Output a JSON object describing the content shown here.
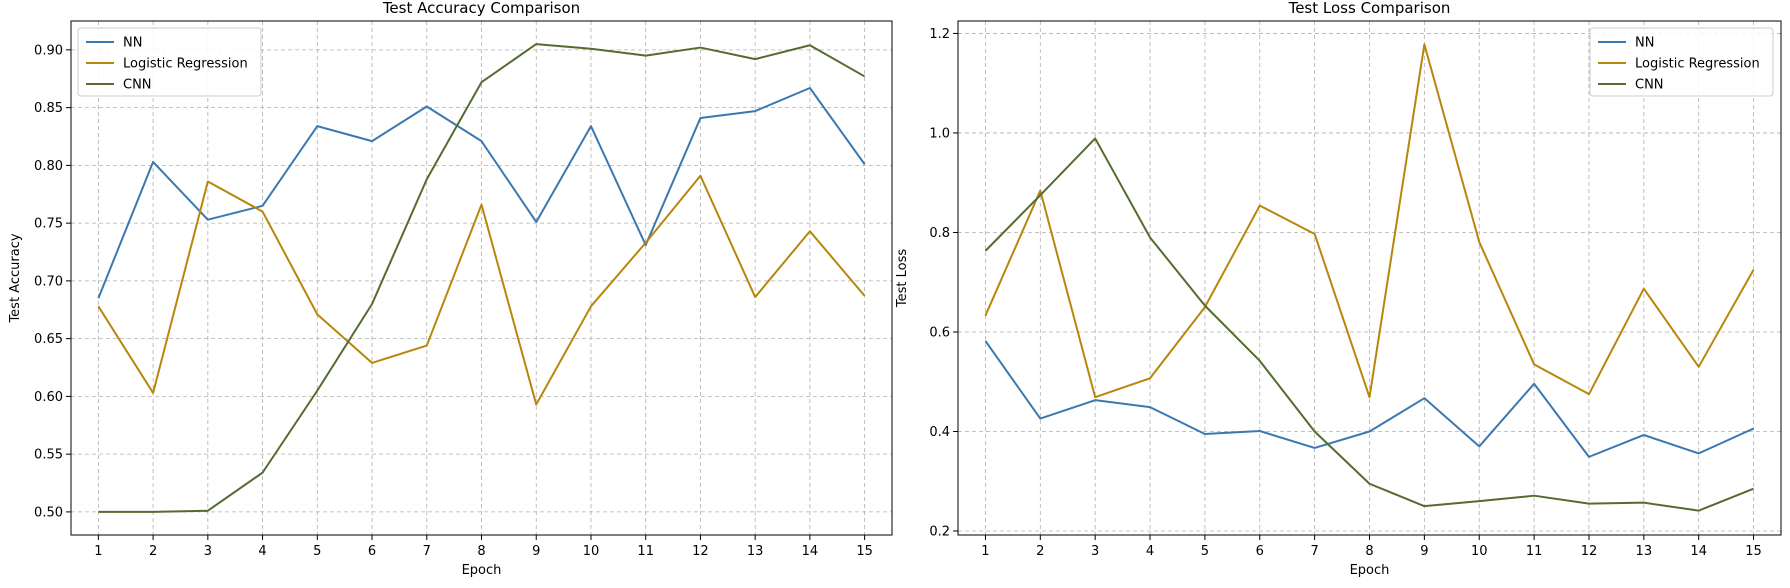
{
  "chart_data": [
    {
      "type": "line",
      "title": "Test Accuracy Comparison",
      "xlabel": "Epoch",
      "ylabel": "Test Accuracy",
      "x": [
        1,
        2,
        3,
        4,
        5,
        6,
        7,
        8,
        9,
        10,
        11,
        12,
        13,
        14,
        15
      ],
      "xlim": [
        0.5,
        15.5
      ],
      "ylim": [
        0.48,
        0.925
      ],
      "yticks": [
        0.5,
        0.55,
        0.6,
        0.65,
        0.7,
        0.75,
        0.8,
        0.85,
        0.9
      ],
      "ytick_labels": [
        "0.50",
        "0.55",
        "0.60",
        "0.65",
        "0.70",
        "0.75",
        "0.80",
        "0.85",
        "0.90"
      ],
      "grid": true,
      "legend_position": "top-left",
      "series": [
        {
          "name": "NN",
          "color": "#3b78b0",
          "values": [
            0.685,
            0.803,
            0.753,
            0.765,
            0.834,
            0.821,
            0.851,
            0.821,
            0.751,
            0.834,
            0.731,
            0.841,
            0.847,
            0.867,
            0.801
          ]
        },
        {
          "name": "Logistic Regression",
          "color": "#b8860b",
          "values": [
            0.678,
            0.603,
            0.786,
            0.76,
            0.671,
            0.629,
            0.644,
            0.766,
            0.593,
            0.678,
            0.733,
            0.791,
            0.686,
            0.743,
            0.687
          ]
        },
        {
          "name": "CNN",
          "color": "#556b2f",
          "values": [
            0.5,
            0.5,
            0.501,
            0.534,
            0.605,
            0.68,
            0.788,
            0.872,
            0.905,
            0.901,
            0.895,
            0.902,
            0.892,
            0.904,
            0.877
          ]
        }
      ]
    },
    {
      "type": "line",
      "title": "Test Loss Comparison",
      "xlabel": "Epoch",
      "ylabel": "Test Loss",
      "x": [
        1,
        2,
        3,
        4,
        5,
        6,
        7,
        8,
        9,
        10,
        11,
        12,
        13,
        14,
        15
      ],
      "xlim": [
        0.5,
        15.5
      ],
      "ylim": [
        0.192,
        1.225
      ],
      "yticks": [
        0.2,
        0.4,
        0.6,
        0.8,
        1.0,
        1.2
      ],
      "ytick_labels": [
        "0.2",
        "0.4",
        "0.6",
        "0.8",
        "1.0",
        "1.2"
      ],
      "grid": true,
      "legend_position": "top-right",
      "series": [
        {
          "name": "NN",
          "color": "#3b78b0",
          "values": [
            0.582,
            0.426,
            0.463,
            0.449,
            0.395,
            0.401,
            0.367,
            0.4,
            0.467,
            0.37,
            0.496,
            0.349,
            0.393,
            0.356,
            0.406
          ]
        },
        {
          "name": "Logistic Regression",
          "color": "#b8860b",
          "values": [
            0.633,
            0.884,
            0.469,
            0.507,
            0.65,
            0.854,
            0.797,
            0.469,
            1.178,
            0.781,
            0.535,
            0.475,
            0.687,
            0.53,
            0.725
          ]
        },
        {
          "name": "CNN",
          "color": "#556b2f",
          "values": [
            0.763,
            0.875,
            0.989,
            0.79,
            0.653,
            0.542,
            0.4,
            0.295,
            0.25,
            0.26,
            0.271,
            0.255,
            0.257,
            0.241,
            0.285
          ]
        }
      ]
    }
  ]
}
